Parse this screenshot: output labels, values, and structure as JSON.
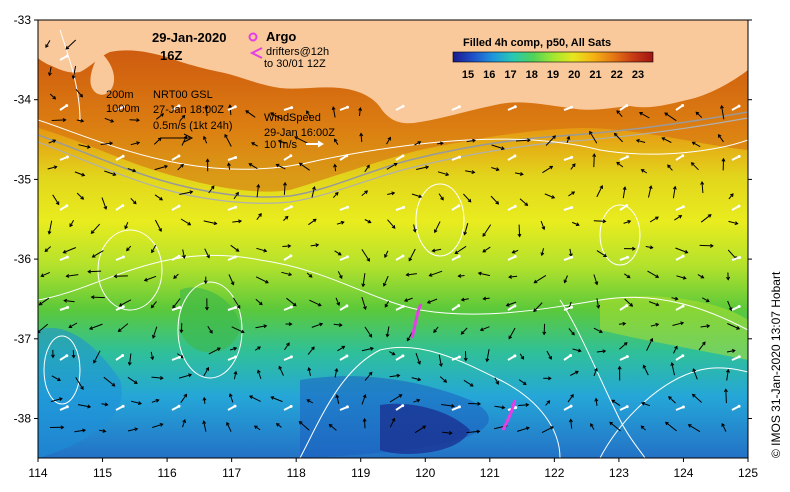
{
  "map": {
    "date": "29-Jan-2020",
    "hour": "16Z",
    "argo": {
      "label": "Argo",
      "drifters_line1": "drifters@12h",
      "drifters_line2": "to 30/01 12Z",
      "color": "#e63ee6"
    },
    "depth_contours": [
      "200m",
      "1000m"
    ],
    "currents": {
      "title": "NRT00 GSL",
      "time": "27-Jan 18:00Z",
      "scale": "0.5m/s (1kt 24h)"
    },
    "wind": {
      "title": "WindSpeed",
      "time": "29-Jan 16:00Z",
      "scale": "10 m/s"
    },
    "credit": "© IMOS 31-Jan-2020 13:07 Hobart",
    "y_ticks": [
      "-33",
      "-34",
      "-35",
      "-36",
      "-37",
      "-38"
    ],
    "x_ticks": [
      "114",
      "115",
      "116",
      "117",
      "118",
      "119",
      "120",
      "121",
      "122",
      "123",
      "124",
      "125"
    ],
    "colors": {
      "land": "#f9c99b",
      "sst_low": "#1a237e",
      "sst_high": "#b71c1c"
    }
  },
  "colorbar": {
    "title": "Filled 4h comp, p50, All Sats",
    "ticks": [
      "15",
      "16",
      "17",
      "18",
      "19",
      "20",
      "21",
      "22",
      "23"
    ],
    "stops": [
      "#1a1a8c",
      "#1e50c8",
      "#1e96dc",
      "#28c8b4",
      "#50d25a",
      "#a0e632",
      "#e6e61e",
      "#f5b414",
      "#e67814",
      "#c83c14",
      "#a01414"
    ]
  }
}
